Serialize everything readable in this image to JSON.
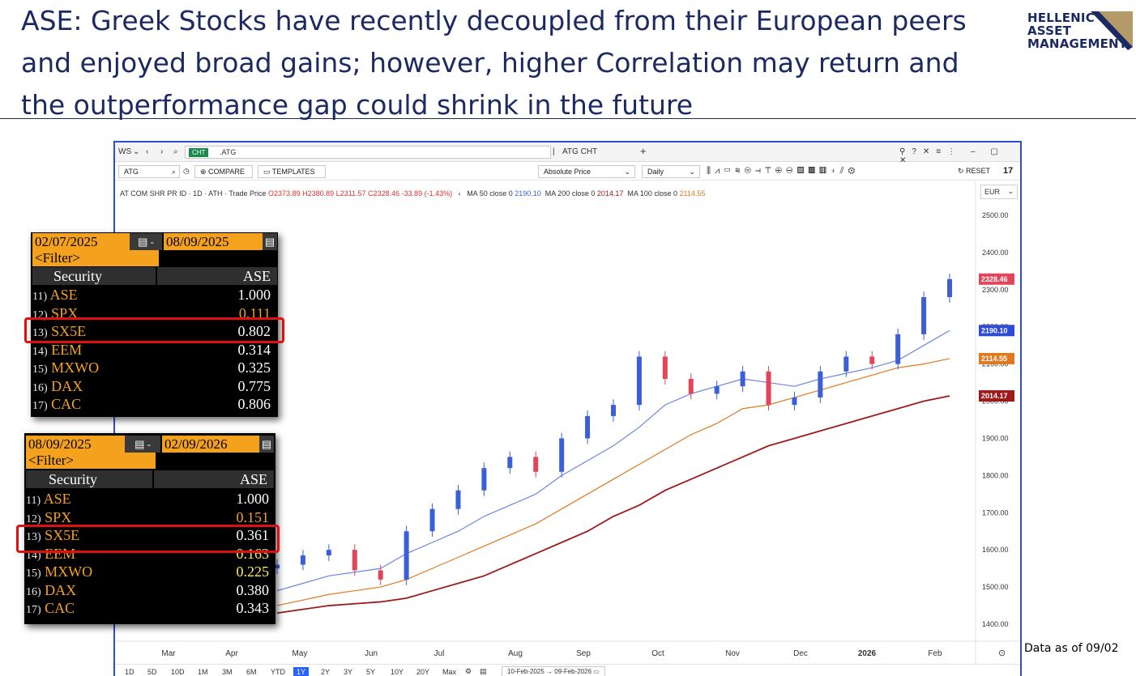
{
  "slide": {
    "title": "ASE: Greek Stocks have recently decoupled from their European peers and enjoyed broad gains; however, higher Correlation may return and the outperformance gap could shrink in the future",
    "logo": [
      "HELLENIC",
      "ASSET",
      "MANAGEMENT"
    ],
    "footnote": "Data as of 09/02"
  },
  "window": {
    "tab_ws": "WS",
    "url_badge": "CHT",
    "url_path": ".ATG",
    "tab_label": "ATG CHT",
    "symbol": "ATG",
    "compare_label": "COMPARE",
    "templates_label": "TEMPLATES",
    "price_mode": "Absolute Price",
    "interval": "Daily",
    "reset_label": "RESET",
    "currency": "EUR",
    "legend": {
      "instrument": "AT COM SHR PR ID · 1D · ATH · Trade Price",
      "o": "O2373.89",
      "h": "H2380.89",
      "l": "L2311.57",
      "c": "C2328.46",
      "chg": "-33.89 (-1.43%)",
      "ma50_label": "MA 50 close 0",
      "ma50_val": "2190.10",
      "ma200_label": "MA 200 close 0",
      "ma200_val": "2014.17",
      "ma100_label": "MA 100 close 0",
      "ma100_val": "2114.55"
    },
    "ranges": [
      "1D",
      "5D",
      "10D",
      "1M",
      "3M",
      "6M",
      "YTD",
      "1Y",
      "2Y",
      "3Y",
      "5Y",
      "10Y",
      "20Y",
      "Max"
    ],
    "active_range": "1Y",
    "date_range": "10-Feb-2025 → 09-Feb-2026"
  },
  "chart_data": {
    "type": "line",
    "title": "",
    "currency": "EUR",
    "ylim": [
      1350,
      2550
    ],
    "y_ticks": [
      1400,
      1500,
      1600,
      1700,
      1800,
      1900,
      2000,
      2100,
      2200,
      2300,
      2400,
      2500
    ],
    "x_ticks": [
      "Mar",
      "Apr",
      "May",
      "Jun",
      "Jul",
      "Aug",
      "Sep",
      "Oct",
      "Nov",
      "Dec",
      "2026",
      "Feb"
    ],
    "x": [
      "2025-02-10",
      "2025-02-24",
      "2025-03-10",
      "2025-03-24",
      "2025-04-07",
      "2025-04-21",
      "2025-05-05",
      "2025-05-19",
      "2025-06-02",
      "2025-06-16",
      "2025-06-30",
      "2025-07-14",
      "2025-07-28",
      "2025-08-11",
      "2025-08-25",
      "2025-09-08",
      "2025-09-22",
      "2025-10-06",
      "2025-10-20",
      "2025-11-03",
      "2025-11-17",
      "2025-12-01",
      "2025-12-15",
      "2025-12-29",
      "2026-01-12",
      "2026-01-26",
      "2026-02-09"
    ],
    "series": [
      {
        "name": "AT COM SHR PR ID",
        "kind": "candlestick",
        "color_up": "#3a5fd9",
        "color_down": "#e0455a",
        "values": [
          1560,
          1585,
          1600,
          1545,
          1520,
          1650,
          1710,
          1760,
          1820,
          1850,
          1810,
          1900,
          1960,
          1990,
          2120,
          2060,
          2020,
          2040,
          2080,
          1990,
          2010,
          2080,
          2120,
          2100,
          2180,
          2280,
          2328.46
        ]
      },
      {
        "name": "MA 50 close 0",
        "color": "#6b86e0",
        "values": [
          1490,
          1510,
          1530,
          1540,
          1550,
          1590,
          1620,
          1650,
          1690,
          1720,
          1750,
          1800,
          1840,
          1880,
          1930,
          1990,
          2020,
          2040,
          2060,
          2050,
          2040,
          2060,
          2075,
          2090,
          2110,
          2150,
          2190.1
        ]
      },
      {
        "name": "MA 100 close 0",
        "color": "#e0791e",
        "values": [
          1450,
          1465,
          1480,
          1490,
          1500,
          1520,
          1550,
          1580,
          1610,
          1640,
          1670,
          1710,
          1750,
          1790,
          1830,
          1870,
          1910,
          1940,
          1980,
          1990,
          2010,
          2030,
          2050,
          2070,
          2090,
          2100,
          2114.55
        ]
      },
      {
        "name": "MA 200 close 0",
        "color": "#9c1a1a",
        "values": [
          1430,
          1440,
          1450,
          1455,
          1460,
          1470,
          1490,
          1510,
          1530,
          1560,
          1590,
          1620,
          1650,
          1690,
          1720,
          1760,
          1790,
          1820,
          1850,
          1880,
          1900,
          1920,
          1940,
          1960,
          1980,
          2000,
          2014.17
        ]
      }
    ],
    "price_labels": [
      {
        "text": "2328.46",
        "value": 2328.46,
        "color": "#e0455a"
      },
      {
        "text": "2190.10",
        "value": 2190.1,
        "color": "#2d4bd6"
      },
      {
        "text": "2114.55",
        "value": 2114.55,
        "color": "#e0791e"
      },
      {
        "text": "2014.17",
        "value": 2014.17,
        "color": "#9c1a1a"
      }
    ]
  },
  "correlation_tables": [
    {
      "start": "02/07/2025",
      "end": "08/09/2025",
      "filter": "<Filter>",
      "col_security": "Security",
      "col_ase": "ASE",
      "rows": [
        {
          "n": "11)",
          "sec": "ASE",
          "val": "1.000"
        },
        {
          "n": "12)",
          "sec": "SPX",
          "val": "0.111"
        },
        {
          "n": "13)",
          "sec": "SX5E",
          "val": "0.802"
        },
        {
          "n": "14)",
          "sec": "EEM",
          "val": "0.314"
        },
        {
          "n": "15)",
          "sec": "MXWO",
          "val": "0.325"
        },
        {
          "n": "16)",
          "sec": "DAX",
          "val": "0.775"
        },
        {
          "n": "17)",
          "sec": "CAC",
          "val": "0.806"
        }
      ]
    },
    {
      "start": "08/09/2025",
      "end": "02/09/2026",
      "filter": "<Filter>",
      "col_security": "Security",
      "col_ase": "ASE",
      "rows": [
        {
          "n": "11)",
          "sec": "ASE",
          "val": "1.000"
        },
        {
          "n": "12)",
          "sec": "SPX",
          "val": "0.151"
        },
        {
          "n": "13)",
          "sec": "SX5E",
          "val": "0.361"
        },
        {
          "n": "14)",
          "sec": "EEM",
          "val": "0.163"
        },
        {
          "n": "15)",
          "sec": "MXWO",
          "val": "0.225"
        },
        {
          "n": "16)",
          "sec": "DAX",
          "val": "0.380"
        },
        {
          "n": "17)",
          "sec": "CAC",
          "val": "0.343"
        }
      ]
    }
  ]
}
